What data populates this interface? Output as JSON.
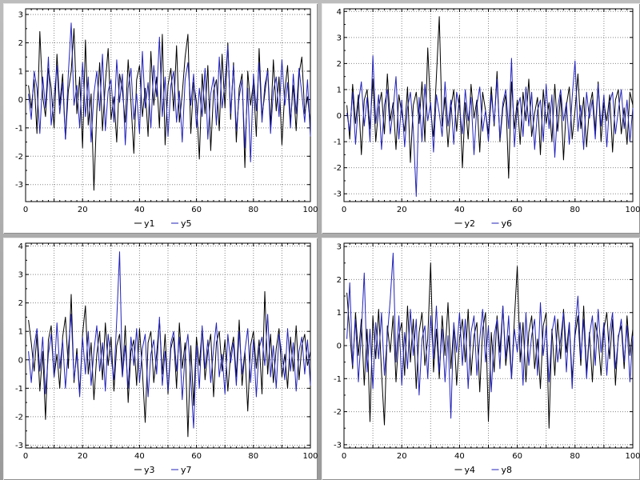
{
  "page": {
    "background": "#a8a8a8",
    "panel_background": "#ffffff"
  },
  "colors": {
    "series_black": "#000000",
    "series_blue": "#2222bb",
    "grid": "#888888",
    "axis": "#000000"
  },
  "chart_data": [
    {
      "id": "chart-1",
      "type": "line",
      "title": "",
      "xlabel": "",
      "ylabel": "",
      "xlim": [
        0,
        100
      ],
      "ylim": [
        -3.6,
        3.2
      ],
      "yticks": [
        -3,
        -2,
        -1,
        0,
        1,
        2,
        3
      ],
      "x_label_ticks": [
        0,
        20,
        40,
        60,
        80,
        100
      ],
      "xgrid_step": 10,
      "x_start": 1,
      "x_step": 1,
      "legend_position": "bottom",
      "grid": true,
      "series": [
        {
          "name": "y1",
          "color": "#000000",
          "values": [
            0.5,
            -0.3,
            0.7,
            -1.2,
            2.4,
            0.1,
            -0.6,
            1.1,
            0.4,
            -1.0,
            1.6,
            -0.2,
            0.9,
            -1.4,
            0.3,
            1.0,
            2.5,
            -0.5,
            0.8,
            -1.7,
            2.1,
            -0.9,
            0.2,
            -3.2,
            -0.4,
            1.3,
            -1.1,
            0.6,
            1.8,
            -0.7,
            0.1,
            -1.5,
            0.9,
            0.3,
            -0.8,
            1.4,
            -0.1,
            -1.9,
            0.7,
            1.2,
            -0.6,
            0.4,
            -1.3,
            1.7,
            -0.2,
            0.8,
            -1.0,
            2.3,
            -1.6,
            0.5,
            1.1,
            -0.4,
            1.9,
            -0.8,
            0.2,
            1.5,
            2.3,
            -1.2,
            0.6,
            -0.1,
            -2.1,
            0.9,
            -0.5,
            1.2,
            -1.8,
            0.3,
            0.7,
            -1.1,
            1.6,
            -0.3,
            2.0,
            -0.7,
            1.3,
            -1.5,
            0.4,
            0.9,
            -2.4,
            1.0,
            -0.2,
            0.6,
            -1.3,
            1.8,
            -0.6,
            0.2,
            1.1,
            -0.9,
            1.4,
            -0.4,
            0.8,
            -1.6,
            0.3,
            1.2,
            -0.8,
            0.5,
            -1.1,
            0.9,
            1.5,
            -0.5,
            0.1,
            -0.9
          ]
        },
        {
          "name": "y5",
          "color": "#2222bb",
          "values": [
            0.2,
            -0.7,
            1.0,
            0.4,
            -1.2,
            0.8,
            -0.3,
            1.5,
            -0.9,
            0.1,
            1.2,
            -0.5,
            0.6,
            -1.4,
            0.9,
            2.7,
            -0.2,
            0.5,
            -1.0,
            1.3,
            -0.6,
            0.8,
            -1.5,
            0.2,
            1.0,
            -0.4,
            1.6,
            -1.1,
            0.3,
            0.7,
            -0.8,
            1.4,
            -0.1,
            0.9,
            -1.6,
            0.4,
            1.1,
            -0.7,
            0.2,
            -1.2,
            1.7,
            -0.3,
            0.6,
            -1.0,
            1.2,
            0.1,
            2.2,
            -0.6,
            0.8,
            -1.3,
            0.5,
            1.0,
            -0.8,
            0.3,
            -1.5,
            0.7,
            1.3,
            -0.2,
            0.9,
            -1.0,
            0.4,
            -0.6,
            1.1,
            -1.4,
            0.2,
            0.8,
            -0.9,
            1.5,
            -0.3,
            0.6,
            1.9,
            -0.5,
            1.2,
            -1.1,
            0.1,
            0.7,
            -1.7,
            0.4,
            -2.2,
            0.9,
            -0.4,
            1.3,
            -0.8,
            0.5,
            1.0,
            -1.2,
            0.3,
            0.8,
            -0.6,
            1.4,
            -0.2,
            0.6,
            -1.0,
            0.9,
            -0.5,
            1.1,
            0.2,
            -0.8,
            0.7,
            -1.3
          ]
        }
      ]
    },
    {
      "id": "chart-2",
      "type": "line",
      "title": "",
      "xlabel": "",
      "ylabel": "",
      "xlim": [
        0,
        100
      ],
      "ylim": [
        -3.3,
        4.1
      ],
      "yticks": [
        -3,
        -2,
        -1,
        0,
        1,
        2,
        3,
        4
      ],
      "x_label_ticks": [
        0,
        20,
        40,
        60,
        80,
        100
      ],
      "xgrid_step": 10,
      "x_start": 1,
      "x_step": 1,
      "legend_position": "bottom",
      "grid": true,
      "series": [
        {
          "name": "y2",
          "color": "#000000",
          "values": [
            0.4,
            -0.9,
            1.2,
            -0.3,
            0.8,
            -1.5,
            0.6,
            1.0,
            -0.5,
            1.4,
            -1.0,
            0.3,
            0.9,
            -0.7,
            1.6,
            -0.2,
            0.5,
            -1.3,
            0.8,
            0.1,
            -0.6,
            1.1,
            -1.8,
            0.4,
            0.9,
            -0.3,
            1.3,
            -1.0,
            2.6,
            0.2,
            -0.8,
            1.5,
            3.8,
            -0.4,
            0.7,
            -1.2,
            0.3,
            1.0,
            -0.6,
            0.8,
            -2.0,
            0.5,
            -0.9,
            1.2,
            -0.1,
            0.6,
            -1.4,
            0.9,
            0.2,
            -0.7,
            1.1,
            -0.4,
            1.7,
            -1.0,
            0.3,
            0.8,
            -2.4,
            1.3,
            -0.5,
            0.6,
            -1.1,
            0.9,
            -0.2,
            1.4,
            -0.8,
            0.1,
            0.7,
            -1.5,
            1.0,
            -0.3,
            0.5,
            -1.0,
            1.2,
            -0.6,
            0.8,
            -1.7,
            0.4,
            1.1,
            -0.9,
            0.2,
            1.6,
            -0.5,
            0.7,
            -1.2,
            0.3,
            0.9,
            -0.6,
            1.3,
            -1.0,
            0.5,
            -0.2,
            0.8,
            -1.4,
            0.6,
            1.0,
            -0.7,
            0.3,
            -1.1,
            0.9,
            0.4
          ]
        },
        {
          "name": "y6",
          "color": "#2222bb",
          "values": [
            0.1,
            -0.6,
            0.9,
            -1.1,
            0.5,
            1.3,
            -0.4,
            0.7,
            -1.0,
            2.3,
            -0.3,
            0.8,
            -1.3,
            0.4,
            1.0,
            -0.7,
            0.2,
            1.5,
            -0.9,
            0.6,
            -1.2,
            0.3,
            0.9,
            -0.5,
            -3.1,
            0.7,
            -1.0,
            1.2,
            -0.2,
            0.5,
            -1.4,
            0.8,
            0.1,
            -0.8,
            1.3,
            -0.4,
            0.6,
            -1.1,
            0.9,
            0.3,
            -0.7,
            1.0,
            -0.2,
            0.7,
            -1.5,
            0.4,
            1.1,
            -0.6,
            0.2,
            -1.0,
            0.8,
            -0.3,
            1.4,
            -0.9,
            0.5,
            1.0,
            -0.5,
            2.2,
            -1.2,
            0.3,
            0.7,
            -0.8,
            1.1,
            -0.4,
            0.9,
            -1.3,
            0.2,
            0.6,
            -1.0,
            1.2,
            -0.5,
            0.8,
            -1.6,
            0.3,
            1.0,
            -0.2,
            0.5,
            -1.1,
            0.7,
            2.1,
            -0.6,
            0.4,
            -1.3,
            0.9,
            -0.1,
            0.6,
            -0.9,
            1.2,
            -0.4,
            0.8,
            -1.2,
            0.5,
            0.9,
            -0.7,
            0.2,
            1.0,
            -0.5,
            0.6,
            -1.0,
            0.3
          ]
        }
      ]
    },
    {
      "id": "chart-3",
      "type": "line",
      "title": "",
      "xlabel": "",
      "ylabel": "",
      "xlim": [
        0,
        100
      ],
      "ylim": [
        -3.1,
        4.1
      ],
      "yticks": [
        -3,
        -2,
        -1,
        0,
        1,
        2,
        3,
        4
      ],
      "x_label_ticks": [
        0,
        20,
        40,
        60,
        80,
        100
      ],
      "xgrid_step": 10,
      "x_start": 1,
      "x_step": 1,
      "legend_position": "bottom",
      "grid": true,
      "series": [
        {
          "name": "y3",
          "color": "#000000",
          "values": [
            1.4,
            0.6,
            -0.4,
            0.9,
            -1.1,
            0.3,
            -2.1,
            0.7,
            1.2,
            -0.6,
            0.2,
            -1.0,
            0.8,
            1.5,
            -0.3,
            2.3,
            -0.8,
            0.4,
            -1.2,
            0.9,
            1.9,
            -0.5,
            0.6,
            -1.4,
            0.2,
            1.0,
            -0.7,
            1.3,
            -0.2,
            0.8,
            -1.1,
            0.5,
            0.9,
            -0.6,
            1.2,
            -1.5,
            0.3,
            0.7,
            -0.9,
            1.1,
            -0.4,
            -2.2,
            0.6,
            1.0,
            -0.8,
            0.2,
            1.4,
            -0.5,
            0.9,
            -1.2,
            0.4,
            0.8,
            -1.0,
            1.3,
            -0.3,
            0.6,
            -2.7,
            0.5,
            -1.6,
            0.8,
            -0.2,
            1.1,
            -0.7,
            0.3,
            0.9,
            -1.3,
            0.6,
            1.0,
            -0.4,
            0.7,
            -1.1,
            0.2,
            0.8,
            -0.6,
            1.4,
            -0.9,
            0.3,
            -1.8,
            0.5,
            1.0,
            -0.3,
            0.7,
            -1.2,
            2.4,
            -0.5,
            0.9,
            -0.8,
            0.4,
            1.1,
            -0.6,
            0.2,
            -1.0,
            0.8,
            -0.4,
            1.2,
            -0.7,
            0.5,
            0.9,
            -0.2,
            0.3
          ]
        },
        {
          "name": "y7",
          "color": "#2222bb",
          "values": [
            0.3,
            -0.8,
            0.5,
            1.1,
            -0.4,
            0.8,
            -1.2,
            0.2,
            0.9,
            -0.6,
            1.3,
            -0.3,
            0.7,
            -1.0,
            0.4,
            1.6,
            -0.7,
            0.2,
            -1.3,
            0.8,
            -0.5,
            1.0,
            -0.9,
            0.3,
            1.2,
            -0.4,
            0.6,
            -1.1,
            0.9,
            0.1,
            -0.7,
            1.4,
            3.8,
            -0.6,
            0.5,
            -1.0,
            0.8,
            -0.2,
            1.1,
            -0.8,
            0.4,
            0.9,
            -1.3,
            0.2,
            0.7,
            -0.5,
            1.5,
            -0.9,
            0.3,
            -1.1,
            0.6,
            1.0,
            -0.4,
            0.8,
            -1.4,
            0.2,
            0.9,
            -0.7,
            -2.4,
            0.5,
            -1.0,
            1.2,
            -0.3,
            0.7,
            -0.8,
            0.4,
            1.3,
            -0.6,
            0.2,
            -1.2,
            0.9,
            -0.1,
            0.6,
            -0.9,
            1.0,
            -0.5,
            0.3,
            1.1,
            -0.8,
            0.7,
            -1.3,
            0.4,
            0.8,
            -0.2,
            1.6,
            -0.6,
            0.5,
            -1.0,
            0.9,
            0.2,
            -0.7,
            1.1,
            -0.4,
            0.6,
            -1.1,
            0.3,
            0.8,
            -0.5,
            0.7,
            -0.9
          ]
        }
      ]
    },
    {
      "id": "chart-4",
      "type": "line",
      "title": "",
      "xlabel": "",
      "ylabel": "",
      "xlim": [
        0,
        100
      ],
      "ylim": [
        -3.1,
        3.1
      ],
      "yticks": [
        -3,
        -2,
        -1,
        0,
        1,
        2,
        3
      ],
      "x_label_ticks": [
        0,
        20,
        40,
        60,
        80,
        100
      ],
      "xgrid_step": 10,
      "x_start": 1,
      "x_step": 1,
      "legend_position": "bottom",
      "grid": true,
      "series": [
        {
          "name": "y4",
          "color": "#000000",
          "values": [
            1.6,
            0.4,
            -0.7,
            1.0,
            -0.3,
            0.8,
            -1.2,
            0.5,
            -2.3,
            0.9,
            -0.4,
            1.1,
            -0.8,
            -2.4,
            0.6,
            -0.2,
            0.9,
            -1.1,
            0.3,
            0.7,
            -0.9,
            1.2,
            -0.5,
            0.8,
            -1.3,
            0.4,
            1.0,
            -0.6,
            0.2,
            2.5,
            -0.8,
            0.5,
            -1.0,
            0.9,
            -0.3,
            1.3,
            -0.7,
            0.6,
            -1.2,
            0.2,
            0.8,
            -0.5,
            1.1,
            -0.9,
            0.3,
            0.7,
            -1.4,
            0.5,
            1.0,
            -2.3,
            0.4,
            -0.8,
            0.9,
            -0.2,
            1.2,
            -0.6,
            0.3,
            -1.0,
            0.8,
            2.4,
            -0.5,
            0.7,
            -1.1,
            0.4,
            0.9,
            -0.7,
            0.2,
            -1.3,
            0.6,
            1.0,
            -2.5,
            0.5,
            -0.9,
            0.8,
            -0.4,
            1.1,
            -0.2,
            0.7,
            -1.0,
            0.3,
            0.9,
            -0.6,
            1.2,
            -0.8,
            0.4,
            -1.1,
            0.7,
            0.2,
            -0.9,
            0.5,
            1.0,
            -0.4,
            0.8,
            -1.2,
            0.3,
            0.6,
            -0.7,
            0.9,
            -0.3,
            0.5
          ]
        },
        {
          "name": "y8",
          "color": "#2222bb",
          "values": [
            0.2,
            1.9,
            -0.6,
            0.8,
            -1.1,
            0.4,
            2.2,
            -0.8,
            0.5,
            -1.3,
            0.7,
            -0.4,
            1.0,
            -0.9,
            0.3,
            1.4,
            2.8,
            -0.5,
            0.9,
            -1.2,
            0.4,
            -0.7,
            1.1,
            -0.3,
            0.8,
            -1.5,
            0.2,
            0.6,
            -1.0,
            0.9,
            -0.4,
            1.2,
            -0.8,
            0.5,
            -1.1,
            0.3,
            -2.2,
            0.7,
            -0.2,
            1.0,
            -0.6,
            0.8,
            -1.3,
            0.4,
            0.9,
            -0.9,
            0.2,
            1.1,
            -0.5,
            0.6,
            -1.4,
            0.3,
            0.8,
            -0.7,
            1.2,
            -0.4,
            0.9,
            -1.0,
            0.5,
            -0.2,
            0.7,
            -1.2,
            1.0,
            -0.6,
            0.3,
            0.8,
            -0.9,
            1.3,
            -0.3,
            0.6,
            -1.1,
            0.4,
            0.9,
            -0.5,
            0.2,
            1.0,
            -0.8,
            0.7,
            -1.3,
            0.5,
            1.5,
            -0.4,
            0.8,
            -1.0,
            0.3,
            0.9,
            -0.6,
            1.1,
            -0.2,
            0.7,
            -0.9,
            0.4,
            1.0,
            -0.7,
            0.2,
            0.8,
            -0.5,
            0.6,
            -1.1,
            0.3
          ]
        }
      ]
    }
  ]
}
